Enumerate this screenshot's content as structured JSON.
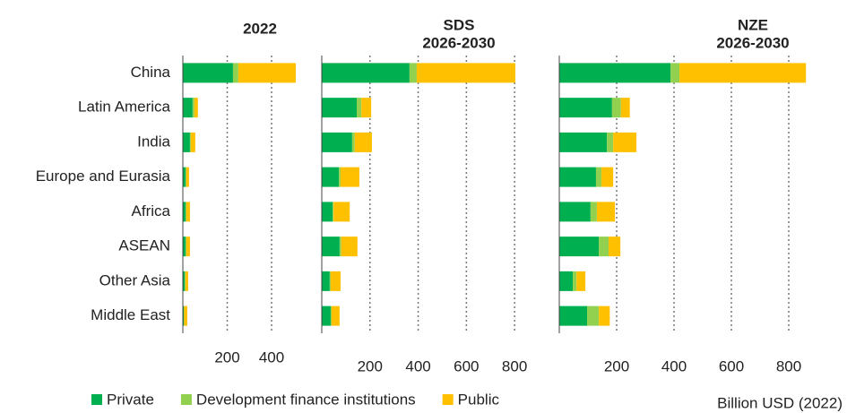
{
  "chart_data": [
    {
      "type": "bar",
      "orientation": "horizontal",
      "stacked": true,
      "title": [
        "2022"
      ],
      "categories": [
        "China",
        "Latin America",
        "India",
        "Europe and Eurasia",
        "Africa",
        "ASEAN",
        "Other Asia",
        "Middle East"
      ],
      "xlabel": "Billion USD (2022)",
      "xlim": [
        0,
        520
      ],
      "xticks": [
        200,
        400
      ],
      "grid": true,
      "series": [
        {
          "name": "Private",
          "color": "#00b050",
          "values": [
            226,
            44,
            32,
            12,
            12,
            12,
            8,
            4
          ]
        },
        {
          "name": "Development finance institutions",
          "color": "#92d050",
          "values": [
            24,
            8,
            4,
            4,
            4,
            4,
            4,
            2
          ]
        },
        {
          "name": "Public",
          "color": "#ffc000",
          "values": [
            259,
            16,
            20,
            12,
            16,
            16,
            12,
            14
          ]
        }
      ]
    },
    {
      "type": "bar",
      "orientation": "horizontal",
      "stacked": true,
      "title": [
        "SDS",
        "2026-2030"
      ],
      "xlim": [
        0,
        820
      ],
      "xticks": [
        200,
        400,
        600,
        800
      ],
      "grid": true,
      "series": [
        {
          "color": "#00b050",
          "values": [
            364,
            145,
            126,
            71,
            45,
            74,
            33,
            37
          ]
        },
        {
          "color": "#92d050",
          "values": [
            30,
            19,
            11,
            7,
            4,
            7,
            4,
            4
          ]
        },
        {
          "color": "#ffc000",
          "values": [
            409,
            41,
            71,
            78,
            67,
            67,
            41,
            33
          ]
        }
      ]
    },
    {
      "type": "bar",
      "orientation": "horizontal",
      "stacked": true,
      "title": [
        "NZE",
        "2026-2030"
      ],
      "xlim": [
        0,
        870
      ],
      "xticks": [
        200,
        400,
        600,
        800
      ],
      "grid": true,
      "series": [
        {
          "color": "#00b050",
          "values": [
            388,
            184,
            166,
            128,
            109,
            138,
            47,
            97
          ]
        },
        {
          "color": "#92d050",
          "values": [
            31,
            31,
            22,
            19,
            22,
            34,
            13,
            41
          ]
        },
        {
          "color": "#ffc000",
          "values": [
            441,
            31,
            81,
            41,
            63,
            41,
            31,
            38
          ]
        }
      ]
    }
  ]
}
